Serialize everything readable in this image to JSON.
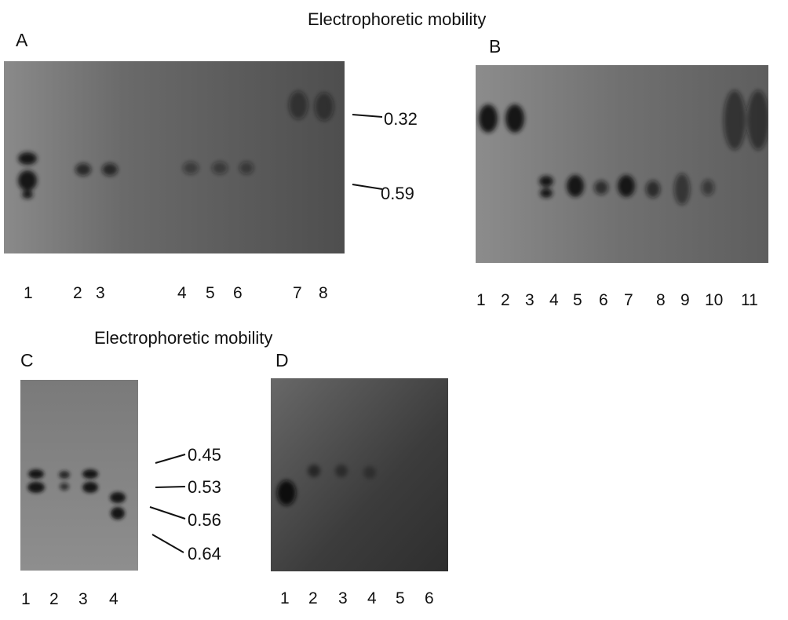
{
  "figure": {
    "panel_a": {
      "letter": "A",
      "heading": "Electrophoretic mobility",
      "lanes": [
        "1",
        "2",
        "3",
        "4",
        "5",
        "6",
        "7",
        "8"
      ],
      "markers": [
        "0.32",
        "0.59"
      ]
    },
    "panel_b": {
      "letter": "B",
      "lanes": [
        "1",
        "2",
        "3",
        "4",
        "5",
        "6",
        "7",
        "8",
        "9",
        "10",
        "11"
      ]
    },
    "panel_c": {
      "letter": "C",
      "heading": "Electrophoretic mobility",
      "lanes": [
        "1",
        "2",
        "3",
        "4"
      ],
      "markers": [
        "0.45",
        "0.53",
        "0.56",
        "0.64"
      ]
    },
    "panel_d": {
      "letter": "D",
      "lanes": [
        "1",
        "2",
        "3",
        "4",
        "5",
        "6"
      ]
    }
  }
}
